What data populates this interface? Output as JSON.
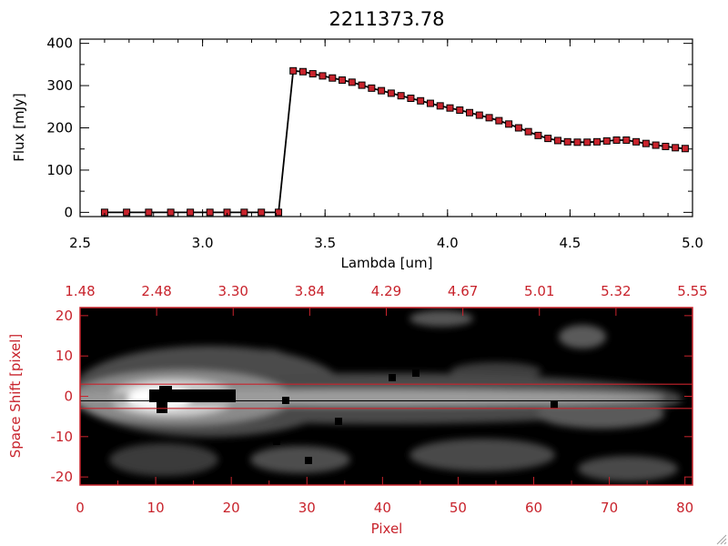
{
  "chart_data": [
    {
      "type": "line",
      "title": "2211373.78",
      "xlabel": "Lambda [um]",
      "ylabel": "Flux [mJy]",
      "xlim": [
        2.5,
        5.0
      ],
      "ylim": [
        -10,
        410
      ],
      "x_ticks": [
        "2.5",
        "3.0",
        "3.5",
        "4.0",
        "4.5",
        "5.0"
      ],
      "y_ticks": [
        "0",
        "100",
        "200",
        "300",
        "400"
      ],
      "marker_color": "#c8232c",
      "line_color": "#000000",
      "series": [
        {
          "x": [
            2.6,
            2.69,
            2.78,
            2.87,
            2.95,
            3.03,
            3.1,
            3.17,
            3.24,
            3.31,
            3.37,
            3.41,
            3.45,
            3.49,
            3.53,
            3.57,
            3.61,
            3.65,
            3.69,
            3.73,
            3.77,
            3.81,
            3.85,
            3.89,
            3.93,
            3.97,
            4.01,
            4.05,
            4.09,
            4.13,
            4.17,
            4.21,
            4.25,
            4.29,
            4.33,
            4.37,
            4.41,
            4.45,
            4.49,
            4.53,
            4.57,
            4.61,
            4.65,
            4.69,
            4.73,
            4.77,
            4.81,
            4.85,
            4.89,
            4.93,
            4.97
          ],
          "y": [
            0,
            0,
            0,
            0,
            0,
            0,
            0,
            0,
            0,
            0,
            335,
            333,
            328,
            323,
            318,
            313,
            308,
            301,
            294,
            288,
            282,
            276,
            270,
            264,
            258,
            252,
            247,
            242,
            236,
            230,
            224,
            217,
            209,
            200,
            191,
            182,
            175,
            170,
            167,
            166,
            166,
            167,
            169,
            171,
            171,
            167,
            163,
            159,
            156,
            153,
            151
          ]
        }
      ]
    },
    {
      "type": "heatmap",
      "xlabel": "Pixel",
      "ylabel": "Space Shift [pixel]",
      "xlim": [
        0,
        81
      ],
      "ylim": [
        -22,
        22
      ],
      "x_ticks": [
        "0",
        "10",
        "20",
        "30",
        "40",
        "50",
        "60",
        "70",
        "80"
      ],
      "y_ticks": [
        "-20",
        "-10",
        "0",
        "10",
        "20"
      ],
      "top_ticks": [
        "1.48",
        "2.48",
        "3.30",
        "3.84",
        "4.29",
        "4.67",
        "5.01",
        "5.32",
        "5.55"
      ],
      "extraction_window": [
        -3,
        3
      ],
      "axis_color": "#c8232c",
      "colormap": "grayscale"
    }
  ]
}
